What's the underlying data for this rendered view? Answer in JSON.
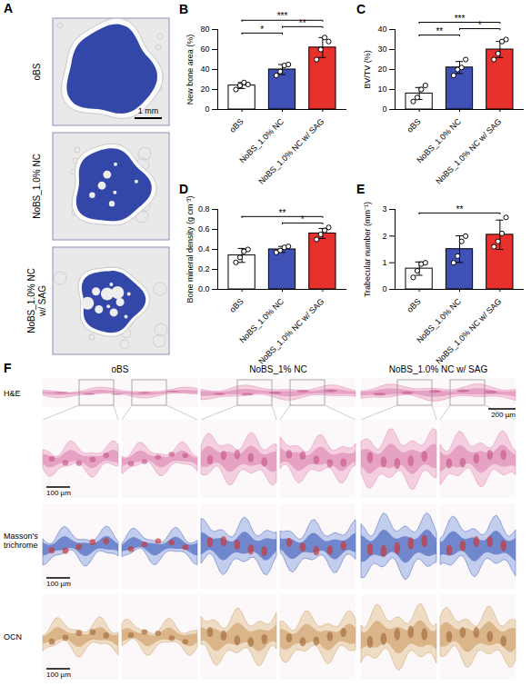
{
  "panel_A": {
    "label": "A",
    "rows": [
      [
        "oBS"
      ],
      [
        "NoBS_1.0% NC"
      ],
      [
        "NoBS_1.0% NC",
        "w/ SAG"
      ]
    ],
    "scale_bar": "1 mm"
  },
  "chart_data": [
    {
      "type": "bar",
      "title": "B",
      "categories": [
        "oBS",
        "NoBS_1.0% NC",
        "NoBS_1.0% NC w/ SAG"
      ],
      "values": [
        24,
        40,
        62
      ],
      "errors": [
        3,
        5,
        10
      ],
      "points": [
        [
          20,
          24,
          27,
          25
        ],
        [
          34,
          38,
          44,
          45
        ],
        [
          50,
          60,
          72,
          68
        ]
      ],
      "colors": [
        "#ffffff",
        "#3f51b5",
        "#e8302c"
      ],
      "ylabel": "New bone area (%)",
      "ylim": [
        0,
        80
      ],
      "yticks": [
        0,
        20,
        40,
        60,
        80
      ],
      "significance": [
        {
          "pair": [
            0,
            1
          ],
          "label": "*"
        },
        {
          "pair": [
            1,
            2
          ],
          "label": "**"
        },
        {
          "pair": [
            0,
            2
          ],
          "label": "***"
        }
      ]
    },
    {
      "type": "bar",
      "title": "C",
      "categories": [
        "oBS",
        "NoBS_1.0% NC",
        "NoBS_1.0% NC w/ SAG"
      ],
      "values": [
        8,
        21,
        30
      ],
      "errors": [
        3,
        3,
        4
      ],
      "points": [
        [
          4,
          6,
          10,
          12
        ],
        [
          17,
          20,
          21,
          25
        ],
        [
          25,
          28,
          34,
          35
        ]
      ],
      "colors": [
        "#ffffff",
        "#3f51b5",
        "#e8302c"
      ],
      "ylabel": "BV/TV (%)",
      "ylim": [
        0,
        40
      ],
      "yticks": [
        0,
        10,
        20,
        30,
        40
      ],
      "significance": [
        {
          "pair": [
            0,
            1
          ],
          "label": "**"
        },
        {
          "pair": [
            1,
            2
          ],
          "label": "*"
        },
        {
          "pair": [
            0,
            2
          ],
          "label": "***"
        }
      ]
    },
    {
      "type": "bar",
      "title": "D",
      "categories": [
        "oBS",
        "NoBS_1.0% NC",
        "NoBS_1.0% NC w/ SAG"
      ],
      "values": [
        0.34,
        0.4,
        0.56
      ],
      "errors": [
        0.07,
        0.03,
        0.05
      ],
      "points": [
        [
          0.27,
          0.32,
          0.38,
          0.4
        ],
        [
          0.37,
          0.39,
          0.42,
          0.43
        ],
        [
          0.5,
          0.55,
          0.59,
          0.62
        ]
      ],
      "colors": [
        "#ffffff",
        "#3f51b5",
        "#e8302c"
      ],
      "ylabel": "Bone mineral density (g cm⁻³)",
      "ylim": [
        0,
        0.8
      ],
      "yticks": [
        {
          "value": 0,
          "label": "0.0"
        },
        0.2,
        0.4,
        0.6,
        0.8
      ],
      "significance": [
        {
          "pair": [
            1,
            2
          ],
          "label": "*"
        },
        {
          "pair": [
            0,
            2
          ],
          "label": "**"
        }
      ]
    },
    {
      "type": "bar",
      "title": "E",
      "categories": [
        "oBS",
        "NoBS_1.0% NC",
        "NoBS_1.0% NC w/ SAG"
      ],
      "values": [
        0.78,
        1.51,
        2.05
      ],
      "errors": [
        0.25,
        0.5,
        0.55
      ],
      "points": [
        [
          0.45,
          0.7,
          0.95,
          1.0
        ],
        [
          1.0,
          1.25,
          1.8,
          2.0
        ],
        [
          1.6,
          1.8,
          2.1,
          2.7
        ]
      ],
      "colors": [
        "#ffffff",
        "#3f51b5",
        "#e8302c"
      ],
      "ylabel": "Trabecular number (mm⁻¹)",
      "ylim": [
        0,
        3
      ],
      "yticks": [
        0,
        1,
        2,
        3
      ],
      "significance": [
        {
          "pair": [
            0,
            2
          ],
          "label": "**"
        }
      ]
    }
  ],
  "panel_F": {
    "label": "F",
    "columns": [
      "oBS",
      "NoBS_1% NC",
      "NoBS_1.0% NC w/ SAG"
    ],
    "rows": [
      "H&E",
      "Masson's trichrome",
      "OCN"
    ],
    "scale_bar_overview": "200 µm",
    "scale_bar_detail": "100 µm"
  }
}
